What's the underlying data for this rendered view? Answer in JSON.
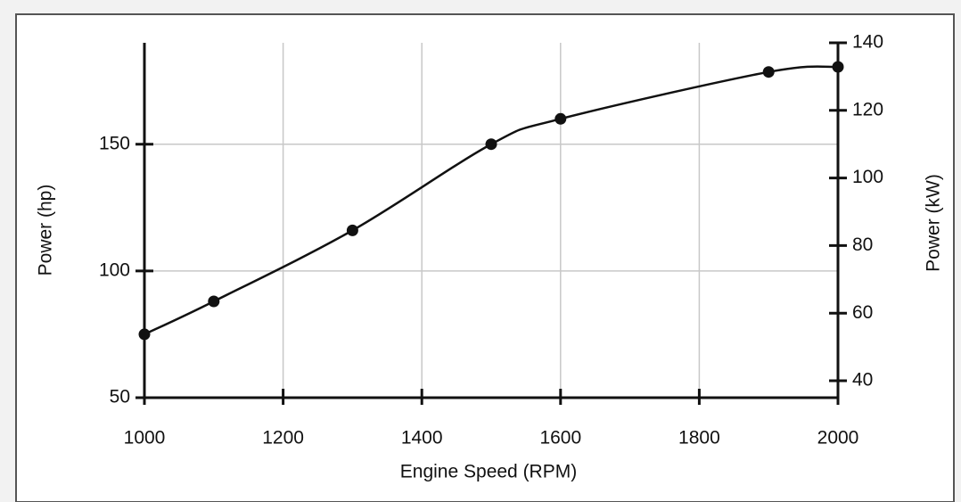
{
  "chart_data": {
    "type": "line",
    "xlabel": "Engine Speed (RPM)",
    "ylabel": "Power (hp)",
    "y2label": "Power (kW)",
    "x": [
      1000,
      1100,
      1300,
      1500,
      1600,
      1900,
      2000
    ],
    "values": [
      75,
      88,
      116,
      150,
      160,
      178.5,
      180.5
    ],
    "color": "#111111",
    "markers": true,
    "xlim": [
      1000,
      2000
    ],
    "xticks": [
      1000,
      1200,
      1400,
      1600,
      1800,
      2000
    ],
    "ylim": [
      50,
      190
    ],
    "yticks": [
      50,
      100,
      150
    ],
    "y2lim": [
      35,
      140
    ],
    "y2ticks": [
      40,
      60,
      80,
      100,
      120,
      140
    ],
    "grid": true
  }
}
